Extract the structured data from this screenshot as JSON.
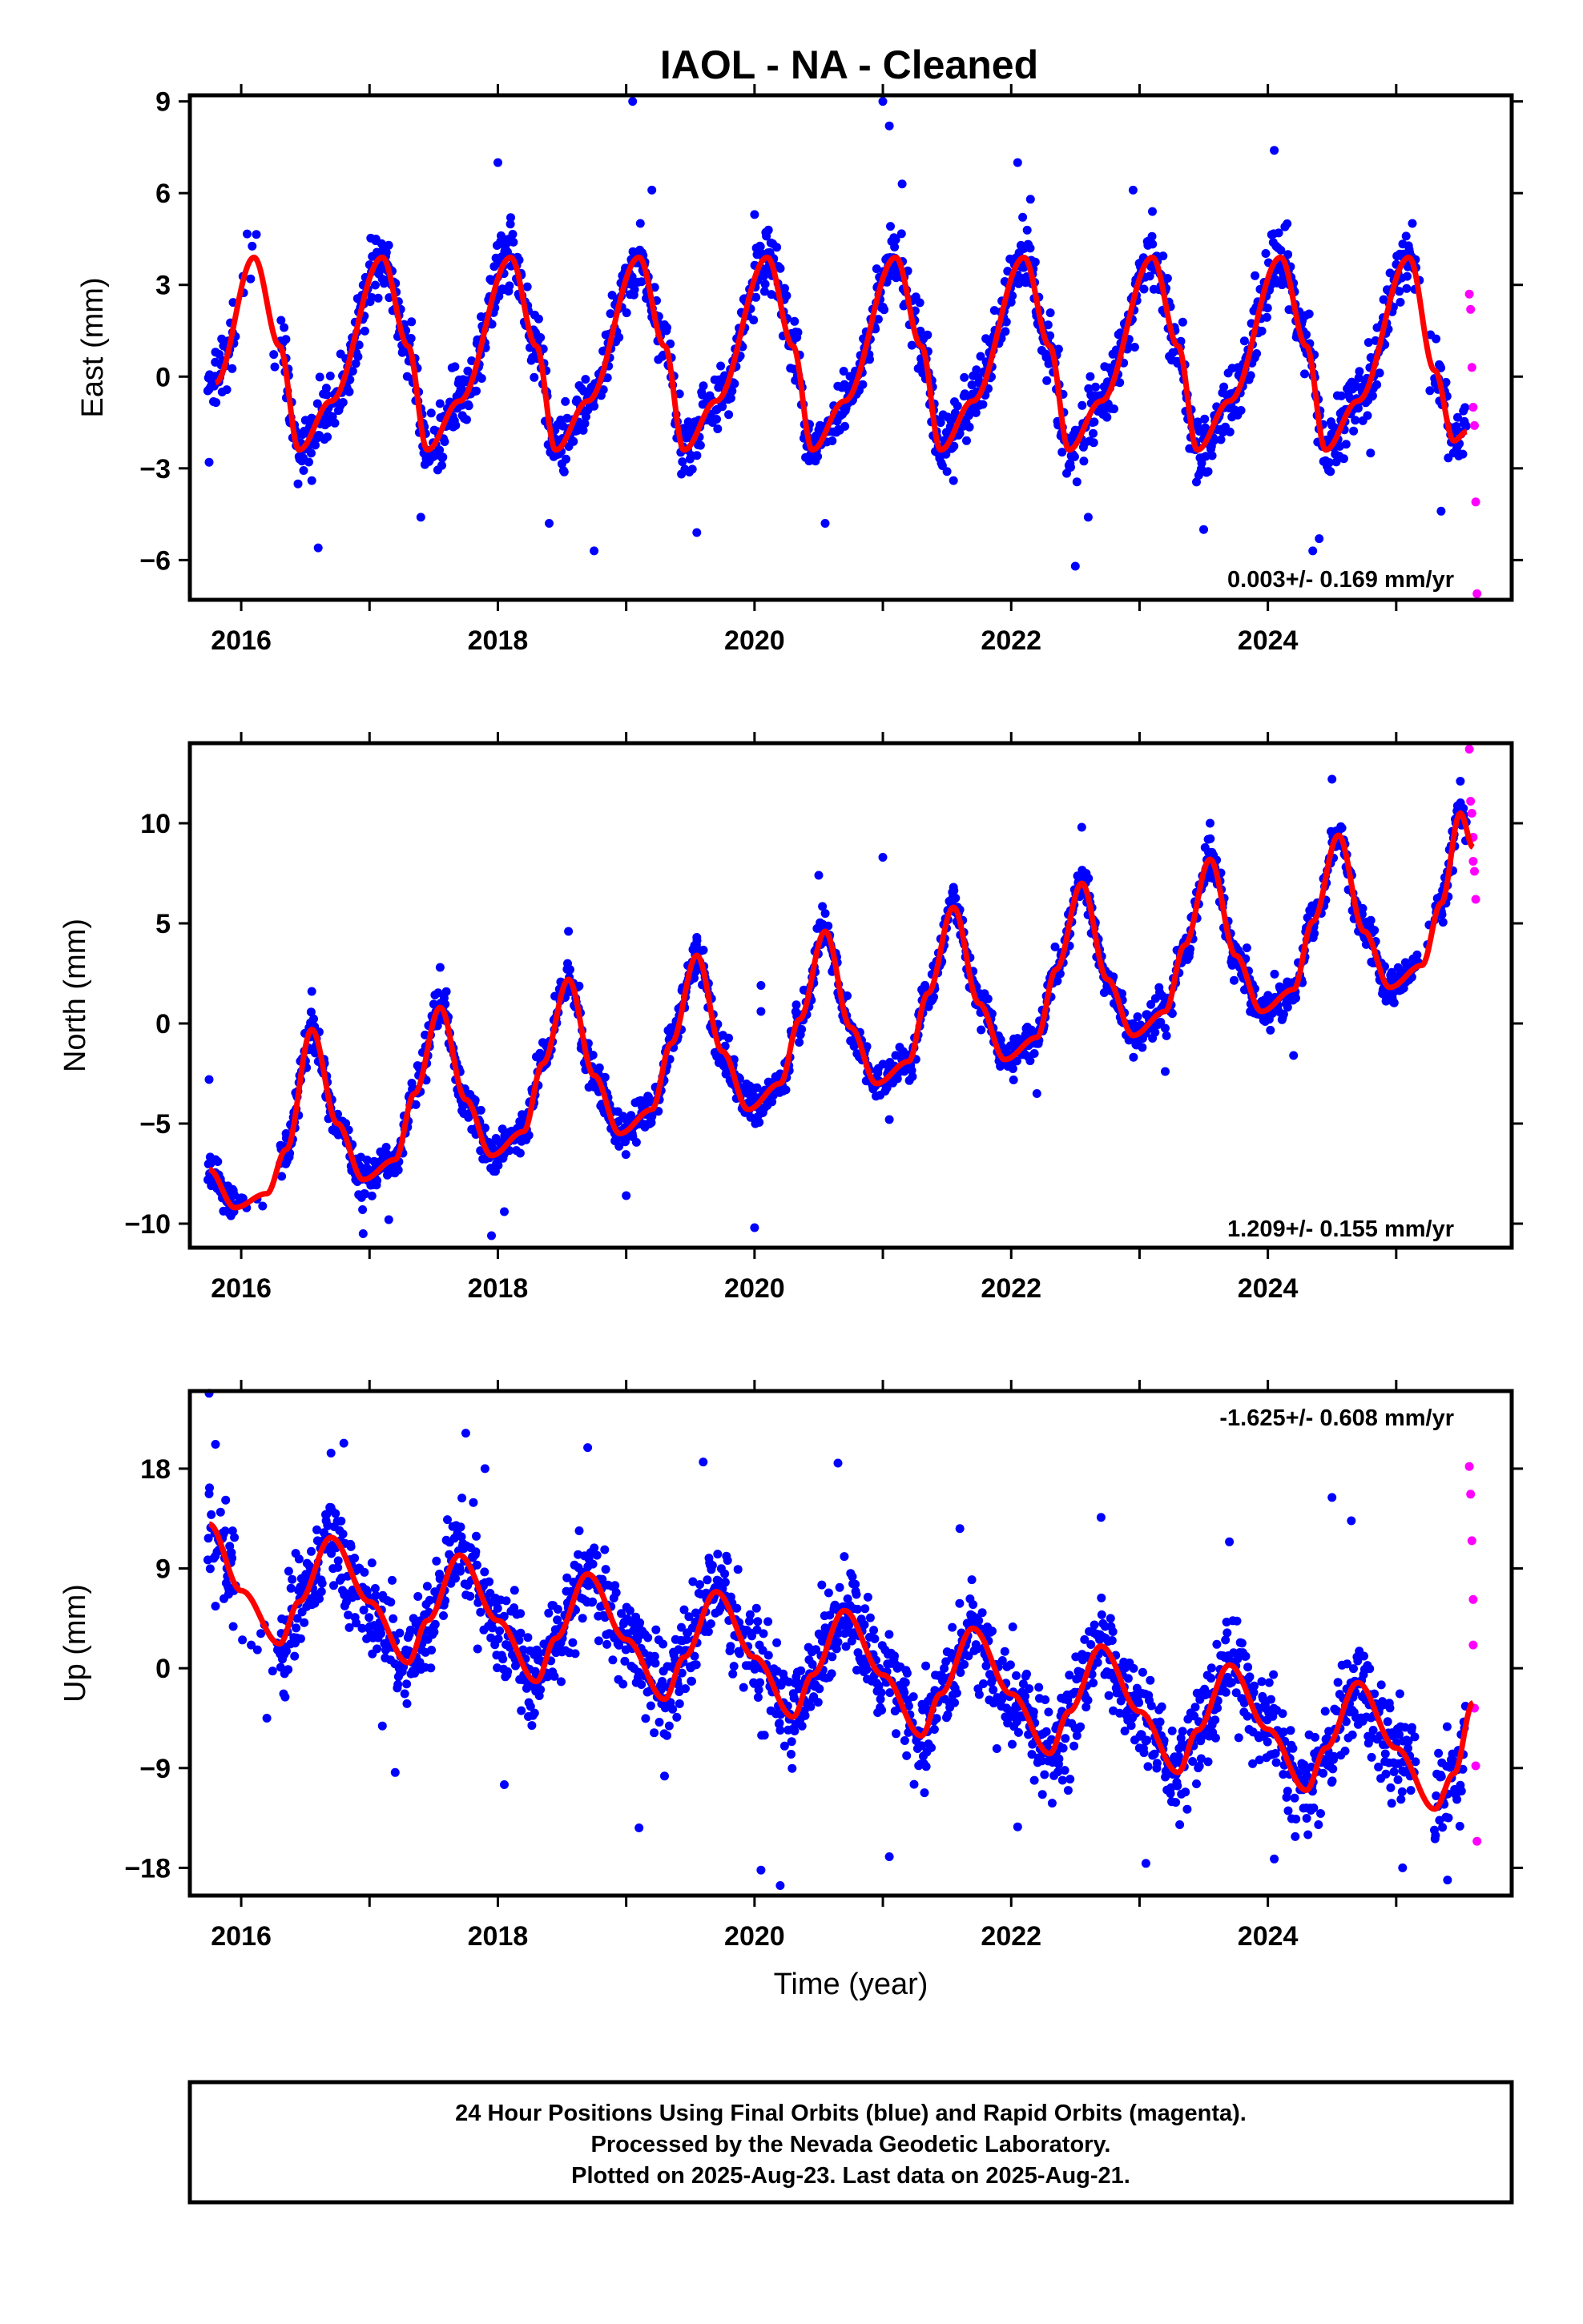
{
  "title": "IAOL  - NA - Cleaned",
  "footer": [
    "24 Hour Positions Using Final Orbits (blue) and Rapid Orbits (magenta).",
    "Processed by the Nevada Geodetic Laboratory.",
    "Plotted on 2025-Aug-23. Last data on 2025-Aug-21."
  ],
  "colors": {
    "final": "#0000ff",
    "rapid": "#ff00ff",
    "model": "#ff0000",
    "frame": "#000000"
  },
  "chart_data": [
    {
      "type": "scatter",
      "ylabel": "East (mm)",
      "xlabel": "",
      "rate": "0.003+/- 0.169 mm/yr",
      "xlim": [
        2015.6,
        2025.9
      ],
      "ylim": [
        -7.3,
        9.2
      ],
      "xticks": [
        "2016",
        "2018",
        "2020",
        "2022",
        "2024"
      ],
      "yticks": [
        "9",
        "6",
        "3",
        "0",
        "-3",
        "-6"
      ],
      "model": {
        "x": [
          2015.8,
          2016.1,
          2016.3,
          2016.45,
          2016.7,
          2017.1,
          2017.3,
          2017.45,
          2017.7,
          2018.1,
          2018.3,
          2018.45,
          2018.7,
          2019.1,
          2019.3,
          2019.45,
          2019.7,
          2020.1,
          2020.3,
          2020.45,
          2020.7,
          2021.1,
          2021.3,
          2021.45,
          2021.7,
          2022.1,
          2022.3,
          2022.45,
          2022.7,
          2023.1,
          2023.3,
          2023.45,
          2023.7,
          2024.1,
          2024.3,
          2024.45,
          2024.7,
          2025.1,
          2025.3,
          2025.45,
          2025.55
        ],
        "y": [
          -0.2,
          3.9,
          1.0,
          -2.4,
          -0.8,
          3.9,
          1.0,
          -2.4,
          -0.8,
          3.9,
          1.0,
          -2.4,
          -0.8,
          3.9,
          1.0,
          -2.4,
          -0.8,
          3.9,
          1.0,
          -2.4,
          -0.8,
          3.9,
          1.0,
          -2.4,
          -0.8,
          3.9,
          1.0,
          -2.4,
          -0.8,
          3.9,
          1.0,
          -2.4,
          -0.8,
          3.9,
          1.0,
          -2.4,
          -0.8,
          3.9,
          0.2,
          -2.1,
          -1.8
        ]
      },
      "final_points": [
        {
          "x": 2015.75,
          "y": -2.8
        },
        {
          "x": 2015.8,
          "y": 0.8
        },
        {
          "x": 2016.35,
          "y": 0.6
        },
        {
          "x": 2016.55,
          "y": -3.4
        },
        {
          "x": 2016.6,
          "y": -5.6
        },
        {
          "x": 2017.05,
          "y": 4.5
        },
        {
          "x": 2017.15,
          "y": 3.2
        },
        {
          "x": 2017.4,
          "y": -4.6
        },
        {
          "x": 2018.0,
          "y": 7.0
        },
        {
          "x": 2018.1,
          "y": 5.2
        },
        {
          "x": 2018.4,
          "y": -4.8
        },
        {
          "x": 2018.75,
          "y": -5.7
        },
        {
          "x": 2019.05,
          "y": 9.0
        },
        {
          "x": 2019.2,
          "y": 6.1
        },
        {
          "x": 2019.55,
          "y": -5.1
        },
        {
          "x": 2020.0,
          "y": 5.3
        },
        {
          "x": 2020.55,
          "y": -4.8
        },
        {
          "x": 2021.0,
          "y": 9.0
        },
        {
          "x": 2021.05,
          "y": 8.2
        },
        {
          "x": 2021.15,
          "y": 6.3
        },
        {
          "x": 2021.55,
          "y": -3.4
        },
        {
          "x": 2022.05,
          "y": 7.0
        },
        {
          "x": 2022.15,
          "y": 5.8
        },
        {
          "x": 2022.5,
          "y": -6.2
        },
        {
          "x": 2022.6,
          "y": -4.6
        },
        {
          "x": 2022.95,
          "y": 6.1
        },
        {
          "x": 2023.1,
          "y": 5.4
        },
        {
          "x": 2023.5,
          "y": -5.0
        },
        {
          "x": 2023.9,
          "y": 3.3
        },
        {
          "x": 2024.05,
          "y": 7.4
        },
        {
          "x": 2024.15,
          "y": 5.0
        },
        {
          "x": 2024.35,
          "y": -5.7
        },
        {
          "x": 2024.4,
          "y": -5.3
        },
        {
          "x": 2024.8,
          "y": -2.5
        },
        {
          "x": 2025.1,
          "y": 4.1
        },
        {
          "x": 2025.35,
          "y": -4.4
        }
      ],
      "rapid_points": [
        {
          "x": 2025.57,
          "y": 2.7
        },
        {
          "x": 2025.58,
          "y": 2.2
        },
        {
          "x": 2025.59,
          "y": 0.3
        },
        {
          "x": 2025.6,
          "y": -1.0
        },
        {
          "x": 2025.61,
          "y": -1.6
        },
        {
          "x": 2025.62,
          "y": -4.1
        },
        {
          "x": 2025.63,
          "y": -7.1
        }
      ]
    },
    {
      "type": "scatter",
      "ylabel": "North (mm)",
      "xlabel": "",
      "rate": "1.209+/- 0.155 mm/yr",
      "xlim": [
        2015.6,
        2025.9
      ],
      "ylim": [
        -11.2,
        14.0
      ],
      "xticks": [
        "2016",
        "2018",
        "2020",
        "2022",
        "2024"
      ],
      "yticks": [
        "10",
        "5",
        "0",
        "-5",
        "-10"
      ],
      "model": {
        "x": [
          2015.75,
          2015.95,
          2016.2,
          2016.35,
          2016.55,
          2016.75,
          2016.95,
          2017.2,
          2017.35,
          2017.55,
          2017.75,
          2017.95,
          2018.2,
          2018.35,
          2018.55,
          2018.75,
          2018.95,
          2019.2,
          2019.35,
          2019.55,
          2019.75,
          2019.95,
          2020.2,
          2020.35,
          2020.55,
          2020.75,
          2020.95,
          2021.2,
          2021.35,
          2021.55,
          2021.75,
          2021.95,
          2022.2,
          2022.35,
          2022.55,
          2022.75,
          2022.95,
          2023.2,
          2023.35,
          2023.55,
          2023.75,
          2023.95,
          2024.2,
          2024.35,
          2024.55,
          2024.75,
          2024.95,
          2025.2,
          2025.35,
          2025.5,
          2025.6
        ],
        "y": [
          -7.3,
          -9.2,
          -8.5,
          -6.3,
          -0.3,
          -5.0,
          -7.8,
          -6.8,
          -3.5,
          0.8,
          -3.8,
          -6.6,
          -5.4,
          -2.0,
          2.2,
          -2.6,
          -5.5,
          -4.3,
          -1.0,
          3.4,
          -1.4,
          -4.3,
          -3.0,
          0.2,
          4.6,
          -0.2,
          -3.0,
          -1.9,
          1.5,
          5.8,
          1.0,
          -1.8,
          -0.7,
          2.7,
          7.0,
          2.2,
          -0.6,
          0.6,
          3.9,
          8.2,
          3.4,
          0.6,
          1.7,
          5.1,
          9.4,
          4.6,
          1.8,
          2.9,
          6.0,
          10.5,
          8.8
        ]
      },
      "final_points": [
        {
          "x": 2015.75,
          "y": -2.8
        },
        {
          "x": 2015.8,
          "y": -6.8
        },
        {
          "x": 2016.35,
          "y": -5.5
        },
        {
          "x": 2016.55,
          "y": 1.6
        },
        {
          "x": 2016.95,
          "y": -10.5
        },
        {
          "x": 2017.15,
          "y": -9.8
        },
        {
          "x": 2017.55,
          "y": 2.8
        },
        {
          "x": 2017.95,
          "y": -10.6
        },
        {
          "x": 2018.05,
          "y": -9.4
        },
        {
          "x": 2018.55,
          "y": 4.6
        },
        {
          "x": 2019.0,
          "y": -8.6
        },
        {
          "x": 2019.55,
          "y": 4.3
        },
        {
          "x": 2020.0,
          "y": -10.2
        },
        {
          "x": 2020.05,
          "y": 1.9
        },
        {
          "x": 2020.05,
          "y": 0.6
        },
        {
          "x": 2020.5,
          "y": 7.4
        },
        {
          "x": 2021.0,
          "y": 8.3
        },
        {
          "x": 2021.05,
          "y": -4.8
        },
        {
          "x": 2021.55,
          "y": 6.8
        },
        {
          "x": 2022.55,
          "y": 9.8
        },
        {
          "x": 2022.2,
          "y": -3.5
        },
        {
          "x": 2023.55,
          "y": 10.0
        },
        {
          "x": 2023.2,
          "y": -2.4
        },
        {
          "x": 2024.5,
          "y": 12.2
        },
        {
          "x": 2024.2,
          "y": -1.6
        },
        {
          "x": 2025.5,
          "y": 12.1
        },
        {
          "x": 2025.4,
          "y": 6.9
        }
      ],
      "rapid_points": [
        {
          "x": 2025.57,
          "y": 13.7
        },
        {
          "x": 2025.58,
          "y": 11.1
        },
        {
          "x": 2025.59,
          "y": 10.5
        },
        {
          "x": 2025.6,
          "y": 9.3
        },
        {
          "x": 2025.6,
          "y": 8.1
        },
        {
          "x": 2025.61,
          "y": 7.6
        },
        {
          "x": 2025.62,
          "y": 6.2
        }
      ]
    },
    {
      "type": "scatter",
      "ylabel": "Up (mm)",
      "xlabel": "Time (year)",
      "rate": "-1.625+/- 0.608 mm/yr",
      "xlim": [
        2015.6,
        2025.9
      ],
      "ylim": [
        -20.5,
        25.0
      ],
      "xticks": [
        "2016",
        "2018",
        "2020",
        "2022",
        "2024"
      ],
      "yticks": [
        "18",
        "9",
        "0",
        "-9",
        "-18"
      ],
      "model": {
        "x": [
          2015.75,
          2016.0,
          2016.3,
          2016.45,
          2016.7,
          2017.0,
          2017.3,
          2017.45,
          2017.7,
          2018.0,
          2018.3,
          2018.45,
          2018.7,
          2019.0,
          2019.3,
          2019.45,
          2019.7,
          2020.0,
          2020.3,
          2020.45,
          2020.7,
          2021.0,
          2021.3,
          2021.45,
          2021.7,
          2022.0,
          2022.3,
          2022.45,
          2022.7,
          2023.0,
          2023.3,
          2023.45,
          2023.7,
          2024.0,
          2024.3,
          2024.45,
          2024.7,
          2025.0,
          2025.3,
          2025.45,
          2025.6
        ],
        "y": [
          13.0,
          7.0,
          2.2,
          6.0,
          11.8,
          6.0,
          0.5,
          4.3,
          10.2,
          4.3,
          -1.2,
          2.7,
          8.5,
          2.6,
          -2.8,
          1.0,
          6.9,
          1.0,
          -4.4,
          -0.6,
          5.2,
          -0.6,
          -6.1,
          -2.3,
          3.6,
          -2.3,
          -7.7,
          -3.9,
          2.0,
          -3.9,
          -9.4,
          -5.6,
          0.3,
          -5.5,
          -11.0,
          -7.2,
          -1.3,
          -7.2,
          -12.7,
          -9.5,
          -3.1
        ]
      },
      "final_points": [
        {
          "x": 2015.75,
          "y": 24.8
        },
        {
          "x": 2015.8,
          "y": 20.2
        },
        {
          "x": 2015.8,
          "y": 5.6
        },
        {
          "x": 2016.2,
          "y": -4.5
        },
        {
          "x": 2016.7,
          "y": 19.4
        },
        {
          "x": 2016.8,
          "y": 20.3
        },
        {
          "x": 2017.1,
          "y": -5.2
        },
        {
          "x": 2017.2,
          "y": -9.4
        },
        {
          "x": 2017.75,
          "y": 21.2
        },
        {
          "x": 2017.9,
          "y": 18.0
        },
        {
          "x": 2018.05,
          "y": -10.5
        },
        {
          "x": 2018.7,
          "y": 19.9
        },
        {
          "x": 2019.1,
          "y": -14.4
        },
        {
          "x": 2019.6,
          "y": 18.6
        },
        {
          "x": 2020.05,
          "y": -18.2
        },
        {
          "x": 2020.2,
          "y": -19.6
        },
        {
          "x": 2020.65,
          "y": 18.5
        },
        {
          "x": 2021.05,
          "y": -17.0
        },
        {
          "x": 2021.6,
          "y": 12.6
        },
        {
          "x": 2022.05,
          "y": -14.3
        },
        {
          "x": 2022.7,
          "y": 13.6
        },
        {
          "x": 2023.05,
          "y": -17.6
        },
        {
          "x": 2023.7,
          "y": 11.4
        },
        {
          "x": 2024.05,
          "y": -17.2
        },
        {
          "x": 2024.5,
          "y": 15.4
        },
        {
          "x": 2024.65,
          "y": 13.3
        },
        {
          "x": 2025.05,
          "y": -18.0
        },
        {
          "x": 2025.4,
          "y": -19.1
        }
      ],
      "rapid_points": [
        {
          "x": 2025.57,
          "y": 18.2
        },
        {
          "x": 2025.58,
          "y": 15.7
        },
        {
          "x": 2025.59,
          "y": 11.5
        },
        {
          "x": 2025.6,
          "y": 6.2
        },
        {
          "x": 2025.6,
          "y": 2.1
        },
        {
          "x": 2025.61,
          "y": -3.6
        },
        {
          "x": 2025.62,
          "y": -8.8
        },
        {
          "x": 2025.63,
          "y": -15.6
        }
      ]
    }
  ]
}
